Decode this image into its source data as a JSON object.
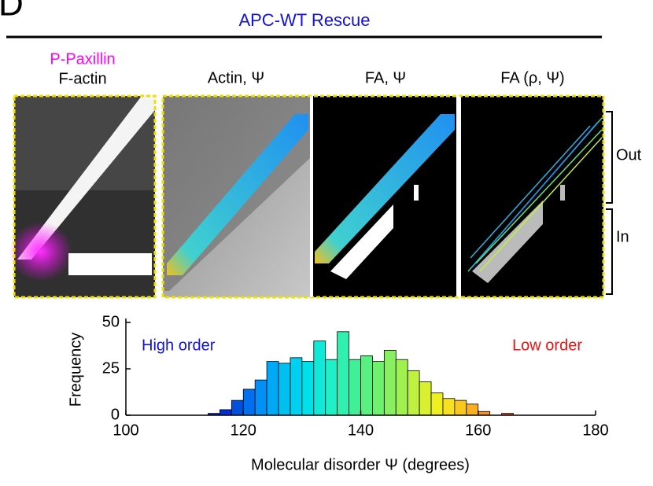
{
  "figure": {
    "panel": "D",
    "title": "APC-WT Rescue",
    "legend_magenta": "P-Paxillin",
    "legend_white": "F-actin",
    "image_titles": [
      "Actin, Ψ",
      "FA, Ψ",
      "FA (ρ, Ψ)"
    ],
    "regions": [
      "Out",
      "In"
    ]
  },
  "chart_data": {
    "type": "histogram",
    "xlabel": "Molecular disorder Ψ (degrees)",
    "ylabel": "Frequency",
    "annotations": [
      "High order",
      "Low order"
    ],
    "bins": [
      114,
      116,
      118,
      120,
      122,
      124,
      126,
      128,
      130,
      132,
      134,
      136,
      138,
      140,
      142,
      144,
      146,
      148,
      150,
      152,
      154,
      156,
      158,
      160,
      162,
      164,
      166
    ],
    "values": [
      1,
      3,
      8,
      14,
      19,
      29,
      28,
      31,
      29,
      40,
      30,
      45,
      30,
      32,
      29,
      35,
      30,
      24,
      18,
      12,
      9,
      8,
      6,
      2,
      0,
      1
    ],
    "colors": [
      "#0020c0",
      "#0030d0",
      "#0050e0",
      "#0070f0",
      "#0090f8",
      "#00a8f8",
      "#00c0f0",
      "#00d0f0",
      "#00e0e8",
      "#10e8d8",
      "#20f0c8",
      "#30f0b0",
      "#40f098",
      "#58f080",
      "#70f070",
      "#88f060",
      "#a0f050",
      "#c0f040",
      "#d8f030",
      "#f0f020",
      "#f8e020",
      "#f8c820",
      "#f8b020",
      "#f89020",
      "#f07020",
      "#e05020"
    ],
    "xlim": [
      100,
      180
    ],
    "ylim": [
      0,
      50
    ],
    "xticks": [
      100,
      120,
      140,
      160,
      180
    ],
    "yticks": [
      0,
      25,
      50
    ]
  }
}
